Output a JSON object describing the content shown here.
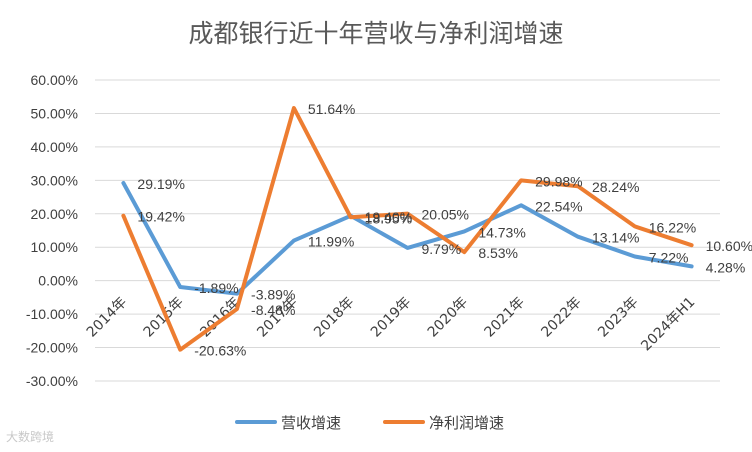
{
  "chart_data": {
    "type": "line",
    "title": "成都银行近十年营收与净利润增速",
    "categories": [
      "2014年",
      "2015年",
      "2016年",
      "2017年",
      "2018年",
      "2019年",
      "2020年",
      "2021年",
      "2022年",
      "2023年",
      "2024年H1"
    ],
    "ylim": [
      -30,
      60
    ],
    "yticks": [
      "60.00%",
      "50.00%",
      "40.00%",
      "30.00%",
      "20.00%",
      "10.00%",
      "0.00%",
      "-10.00%",
      "-20.00%",
      "-30.00%"
    ],
    "ytick_values": [
      60,
      50,
      40,
      30,
      20,
      10,
      0,
      -10,
      -20,
      -30
    ],
    "grid": true,
    "legend_position": "bottom",
    "series": [
      {
        "name": "营收增速",
        "color": "#5B9BD5",
        "values": [
          29.19,
          -1.89,
          -3.89,
          11.99,
          19.4,
          9.79,
          14.73,
          22.54,
          13.14,
          7.22,
          4.28
        ],
        "labels": [
          "29.19%",
          "-1.89%",
          "-3.89%",
          "11.99%",
          "19.40%",
          "9.79%",
          "14.73%",
          "22.54%",
          "13.14%",
          "7.22%",
          "4.28%"
        ]
      },
      {
        "name": "净利润增速",
        "color": "#ED7D31",
        "values": [
          19.42,
          -20.63,
          -8.48,
          51.64,
          18.95,
          20.05,
          8.53,
          29.98,
          28.24,
          16.22,
          10.6
        ],
        "labels": [
          "19.42%",
          "-20.63%",
          "-8.48%",
          "51.64%",
          "18.95%",
          "20.05%",
          "8.53%",
          "29.98%",
          "28.24%",
          "16.22%",
          "10.60%"
        ]
      }
    ]
  },
  "watermark": "大数跨境"
}
